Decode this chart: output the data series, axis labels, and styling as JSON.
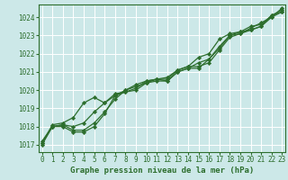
{
  "title": "Graphe pression niveau de la mer (hPa)",
  "bg_color": "#cce8e8",
  "grid_color": "#ffffff",
  "line_color": "#2d6e2d",
  "marker_color": "#2d6e2d",
  "x_ticks": [
    0,
    1,
    2,
    3,
    4,
    5,
    6,
    7,
    8,
    9,
    10,
    11,
    12,
    13,
    14,
    15,
    16,
    17,
    18,
    19,
    20,
    21,
    22,
    23
  ],
  "y_ticks": [
    1017,
    1018,
    1019,
    1020,
    1021,
    1022,
    1023,
    1024
  ],
  "xlim": [
    -0.3,
    23.3
  ],
  "ylim": [
    1016.6,
    1024.7
  ],
  "series": [
    [
      1017.0,
      1018.0,
      1018.0,
      1017.7,
      1017.7,
      1018.0,
      1018.7,
      1019.7,
      1019.9,
      1020.0,
      1020.4,
      1020.5,
      1020.5,
      1021.0,
      1021.2,
      1021.2,
      1021.7,
      1022.3,
      1023.0,
      1023.2,
      1023.3,
      1023.5,
      1024.0,
      1024.3
    ],
    [
      1017.1,
      1018.1,
      1018.2,
      1018.5,
      1019.3,
      1019.6,
      1019.3,
      1019.8,
      1019.9,
      1020.1,
      1020.5,
      1020.6,
      1020.6,
      1021.1,
      1021.3,
      1021.8,
      1022.0,
      1022.8,
      1023.1,
      1023.2,
      1023.5,
      1023.6,
      1024.1,
      1024.3
    ],
    [
      1017.2,
      1018.0,
      1018.1,
      1017.8,
      1017.8,
      1018.2,
      1018.8,
      1019.5,
      1020.0,
      1020.2,
      1020.4,
      1020.6,
      1020.7,
      1021.1,
      1021.3,
      1021.3,
      1021.5,
      1022.2,
      1022.9,
      1023.1,
      1023.4,
      1023.7,
      1024.0,
      1024.5
    ],
    [
      1017.1,
      1018.0,
      1018.1,
      1018.0,
      1018.2,
      1018.8,
      1019.3,
      1019.7,
      1020.0,
      1020.3,
      1020.5,
      1020.6,
      1020.5,
      1021.0,
      1021.2,
      1021.5,
      1021.7,
      1022.4,
      1023.0,
      1023.1,
      1023.3,
      1023.5,
      1024.1,
      1024.4
    ]
  ],
  "font_size_x": 5.5,
  "font_size_y": 5.5,
  "font_size_label": 6.5,
  "linewidth": 0.9,
  "markersize": 2.2
}
